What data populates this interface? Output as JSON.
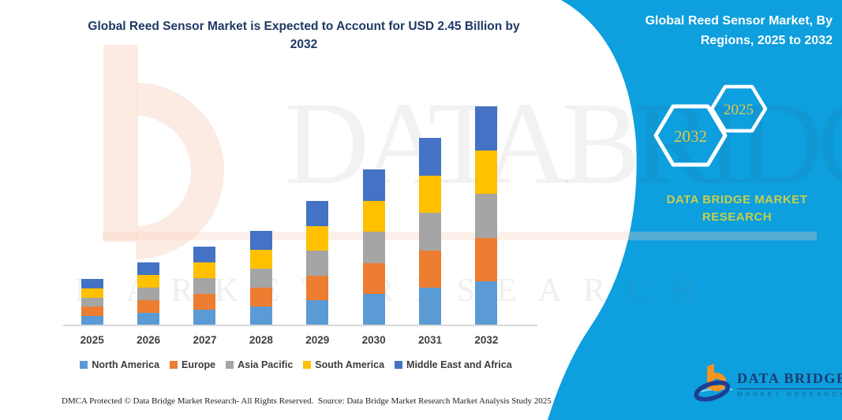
{
  "title": {
    "line1": "Global Reed Sensor Market is Expected to Account for USD 2.45 Billion by",
    "line2": "2032"
  },
  "side_panel": {
    "title_line1": "Global Reed Sensor Market, By",
    "title_line2": "Regions, 2025 to 2032",
    "hexagons": [
      {
        "label": "2032"
      },
      {
        "label": "2025"
      }
    ],
    "brand_line1": "DATA BRIDGE MARKET",
    "brand_line2": "RESEARCH",
    "bg_color": "#0D9FDE",
    "accent_text_color": "#DFC94E"
  },
  "watermark": {
    "big": "DATABRIDGE",
    "sub": "MARKET RESEARCH"
  },
  "logo": {
    "title": "DATA BRIDGE",
    "subtitle": "MARKET RESEARCH"
  },
  "footer": {
    "dmca": "DMCA Protected © Data Bridge Market Research-  All Rights Reserved.",
    "source": "Source: Data Bridge Market Research  Market Analysis Study 2025"
  },
  "chart_data": {
    "type": "bar",
    "stacked": true,
    "title": "Global Reed Sensor Market is Expected to Account for USD 2.45 Billion by 2032",
    "xlabel": "",
    "ylabel": "",
    "categories": [
      "2025",
      "2026",
      "2027",
      "2028",
      "2029",
      "2030",
      "2031",
      "2032"
    ],
    "series": [
      {
        "name": "North America",
        "color": "#5B9BD5",
        "values": [
          0.104,
          0.141,
          0.176,
          0.212,
          0.278,
          0.349,
          0.419,
          0.49
        ]
      },
      {
        "name": "Europe",
        "color": "#ED7D31",
        "values": [
          0.104,
          0.141,
          0.176,
          0.212,
          0.278,
          0.349,
          0.419,
          0.49
        ]
      },
      {
        "name": "Asia Pacific",
        "color": "#A5A5A5",
        "values": [
          0.104,
          0.141,
          0.176,
          0.212,
          0.278,
          0.349,
          0.419,
          0.49
        ]
      },
      {
        "name": "South America",
        "color": "#FFC000",
        "values": [
          0.104,
          0.141,
          0.176,
          0.212,
          0.278,
          0.349,
          0.419,
          0.49
        ]
      },
      {
        "name": "Middle East and Africa",
        "color": "#4472C4",
        "values": [
          0.104,
          0.141,
          0.176,
          0.212,
          0.278,
          0.349,
          0.419,
          0.49
        ]
      }
    ],
    "stack_totals": [
      0.52,
      0.71,
      0.88,
      1.06,
      1.39,
      1.75,
      2.1,
      2.45
    ],
    "ylim": [
      0,
      2.45
    ],
    "y_axis_visible": false,
    "gridlines": false,
    "legend_position": "bottom"
  }
}
